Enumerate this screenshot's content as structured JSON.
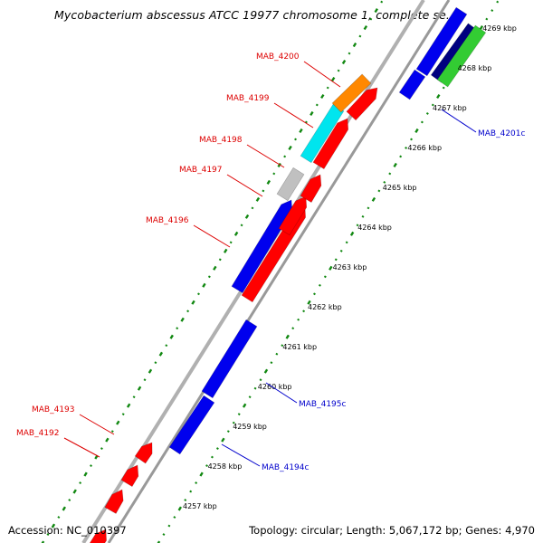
{
  "title": "Mycobacterium abscessus ATCC 19977 chromosome 1, complete se...",
  "footer": {
    "accession": "Accession: NC_010397",
    "stats": "Topology: circular; Length: 5,067,172 bp; Genes: 4,970"
  },
  "colors": {
    "forward_label": "#dd0000",
    "reverse_label": "#0000cc",
    "red_gene": "#ff0000",
    "blue_gene": "#0000ee",
    "orange_gene": "#ff8800",
    "cyan_gene": "#00e5ee",
    "gray_gene": "#c0c0c0",
    "navy_gene": "#000080",
    "green_gene": "#33cc33",
    "backbone": "#a8a8a8",
    "tick": "#118811"
  },
  "ticks": [
    {
      "label": "4257 kbp"
    },
    {
      "label": "4258 kbp"
    },
    {
      "label": "4259 kbp"
    },
    {
      "label": "4260 kbp"
    },
    {
      "label": "4261 kbp"
    },
    {
      "label": "4262 kbp"
    },
    {
      "label": "4263 kbp"
    },
    {
      "label": "4264 kbp"
    },
    {
      "label": "4265 kbp"
    },
    {
      "label": "4266 kbp"
    },
    {
      "label": "4267 kbp"
    },
    {
      "label": "4268 kbp"
    },
    {
      "label": "4269 kbp"
    }
  ],
  "gene_labels": [
    {
      "label": "MAB_4200",
      "strand": "forward"
    },
    {
      "label": "MAB_4199",
      "strand": "forward"
    },
    {
      "label": "MAB_4198",
      "strand": "forward"
    },
    {
      "label": "MAB_4197",
      "strand": "forward"
    },
    {
      "label": "MAB_4196",
      "strand": "forward"
    },
    {
      "label": "MAB_4193",
      "strand": "forward"
    },
    {
      "label": "MAB_4192",
      "strand": "forward"
    },
    {
      "label": "MAB_4201c",
      "strand": "reverse"
    },
    {
      "label": "MAB_4195c",
      "strand": "reverse"
    },
    {
      "label": "MAB_4194c",
      "strand": "reverse"
    }
  ]
}
